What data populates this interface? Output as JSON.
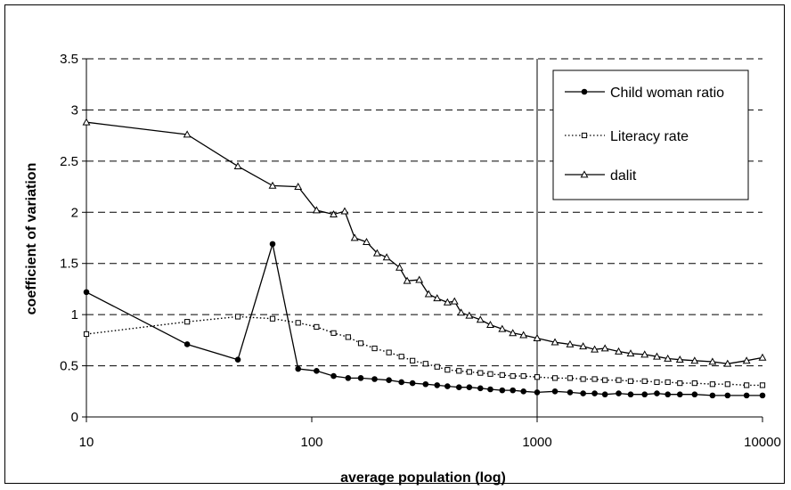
{
  "chart_data": {
    "type": "line",
    "title": "",
    "xlabel": "average population (log)",
    "ylabel": "coefficient of variation",
    "xscale": "log",
    "xlim": [
      10,
      10000
    ],
    "ylim": [
      0,
      3.5
    ],
    "x_ticks": [
      "10",
      "100",
      "1000",
      "10000"
    ],
    "y_ticks": [
      "0",
      "0.5",
      "1",
      "1.5",
      "2",
      "2.5",
      "3",
      "3.5"
    ],
    "grid": "horizontal dashed",
    "legend_position": "top-right",
    "series": [
      {
        "name": "Child woman ratio",
        "style": "solid",
        "marker": "circle",
        "color": "#000000",
        "points": [
          [
            10,
            1.22
          ],
          [
            28,
            0.71
          ],
          [
            47,
            0.56
          ],
          [
            67,
            1.69
          ],
          [
            87,
            0.47
          ],
          [
            105,
            0.45
          ],
          [
            125,
            0.4
          ],
          [
            145,
            0.38
          ],
          [
            165,
            0.38
          ],
          [
            190,
            0.37
          ],
          [
            220,
            0.36
          ],
          [
            250,
            0.34
          ],
          [
            280,
            0.33
          ],
          [
            320,
            0.32
          ],
          [
            360,
            0.31
          ],
          [
            400,
            0.3
          ],
          [
            450,
            0.29
          ],
          [
            500,
            0.29
          ],
          [
            560,
            0.28
          ],
          [
            620,
            0.27
          ],
          [
            700,
            0.26
          ],
          [
            780,
            0.26
          ],
          [
            870,
            0.25
          ],
          [
            1000,
            0.24
          ],
          [
            1200,
            0.25
          ],
          [
            1400,
            0.24
          ],
          [
            1600,
            0.23
          ],
          [
            1800,
            0.23
          ],
          [
            2000,
            0.22
          ],
          [
            2300,
            0.23
          ],
          [
            2600,
            0.22
          ],
          [
            3000,
            0.22
          ],
          [
            3400,
            0.23
          ],
          [
            3800,
            0.22
          ],
          [
            4300,
            0.22
          ],
          [
            5000,
            0.22
          ],
          [
            6000,
            0.21
          ],
          [
            7000,
            0.21
          ],
          [
            8500,
            0.21
          ],
          [
            10000,
            0.21
          ]
        ]
      },
      {
        "name": "Literacy rate",
        "style": "dotted",
        "marker": "square",
        "color": "#000000",
        "points": [
          [
            10,
            0.81
          ],
          [
            28,
            0.93
          ],
          [
            47,
            0.98
          ],
          [
            67,
            0.96
          ],
          [
            87,
            0.92
          ],
          [
            105,
            0.88
          ],
          [
            125,
            0.82
          ],
          [
            145,
            0.78
          ],
          [
            165,
            0.72
          ],
          [
            190,
            0.67
          ],
          [
            220,
            0.63
          ],
          [
            250,
            0.59
          ],
          [
            280,
            0.55
          ],
          [
            320,
            0.52
          ],
          [
            360,
            0.49
          ],
          [
            400,
            0.46
          ],
          [
            450,
            0.45
          ],
          [
            500,
            0.44
          ],
          [
            560,
            0.43
          ],
          [
            620,
            0.42
          ],
          [
            700,
            0.41
          ],
          [
            780,
            0.4
          ],
          [
            870,
            0.4
          ],
          [
            1000,
            0.39
          ],
          [
            1200,
            0.38
          ],
          [
            1400,
            0.38
          ],
          [
            1600,
            0.37
          ],
          [
            1800,
            0.37
          ],
          [
            2000,
            0.36
          ],
          [
            2300,
            0.36
          ],
          [
            2600,
            0.35
          ],
          [
            3000,
            0.35
          ],
          [
            3400,
            0.34
          ],
          [
            3800,
            0.34
          ],
          [
            4300,
            0.33
          ],
          [
            5000,
            0.33
          ],
          [
            6000,
            0.32
          ],
          [
            7000,
            0.32
          ],
          [
            8500,
            0.31
          ],
          [
            10000,
            0.31
          ]
        ]
      },
      {
        "name": "dalit",
        "style": "solid",
        "marker": "triangle",
        "color": "#000000",
        "points": [
          [
            10,
            2.88
          ],
          [
            28,
            2.76
          ],
          [
            47,
            2.45
          ],
          [
            67,
            2.26
          ],
          [
            87,
            2.25
          ],
          [
            105,
            2.02
          ],
          [
            125,
            1.98
          ],
          [
            140,
            2.01
          ],
          [
            155,
            1.75
          ],
          [
            175,
            1.71
          ],
          [
            195,
            1.6
          ],
          [
            215,
            1.56
          ],
          [
            245,
            1.46
          ],
          [
            265,
            1.33
          ],
          [
            300,
            1.34
          ],
          [
            330,
            1.2
          ],
          [
            360,
            1.16
          ],
          [
            400,
            1.12
          ],
          [
            430,
            1.13
          ],
          [
            460,
            1.02
          ],
          [
            500,
            0.99
          ],
          [
            560,
            0.95
          ],
          [
            620,
            0.9
          ],
          [
            700,
            0.86
          ],
          [
            780,
            0.82
          ],
          [
            870,
            0.8
          ],
          [
            1000,
            0.77
          ],
          [
            1200,
            0.73
          ],
          [
            1400,
            0.71
          ],
          [
            1600,
            0.69
          ],
          [
            1800,
            0.66
          ],
          [
            2000,
            0.67
          ],
          [
            2300,
            0.64
          ],
          [
            2600,
            0.62
          ],
          [
            3000,
            0.61
          ],
          [
            3400,
            0.59
          ],
          [
            3800,
            0.57
          ],
          [
            4300,
            0.56
          ],
          [
            5000,
            0.55
          ],
          [
            6000,
            0.54
          ],
          [
            7000,
            0.52
          ],
          [
            8500,
            0.55
          ],
          [
            10000,
            0.58
          ]
        ]
      }
    ]
  }
}
